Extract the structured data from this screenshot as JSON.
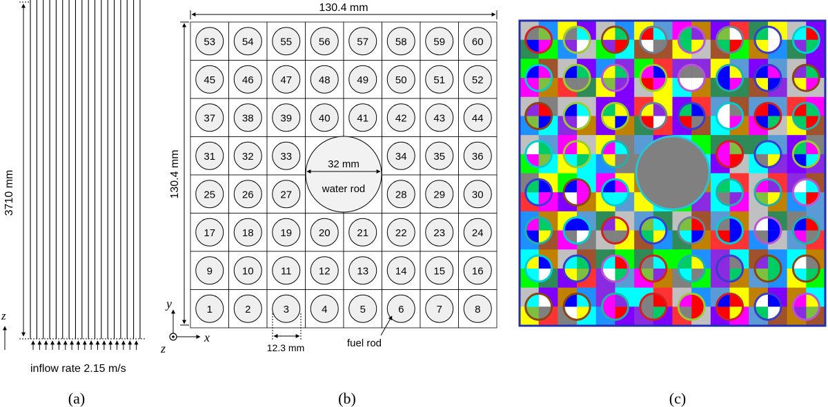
{
  "panel_a": {
    "height_label": "3710 mm",
    "z_axis": "z",
    "inflow_label": "inflow rate 2.15 m/s",
    "caption": "(a)"
  },
  "panel_b": {
    "width_label": "130.4 mm",
    "height_label": "130.4 mm",
    "water_rod_diameter": "32 mm",
    "water_rod_label": "water rod",
    "pitch_label": "12.3 mm",
    "fuel_rod_label": "fuel rod",
    "axis_x": "x",
    "axis_y": "y",
    "axis_z": "z",
    "caption": "(b)",
    "rod_numbers": [
      [
        "53",
        "54",
        "55",
        "56",
        "57",
        "58",
        "59",
        "60"
      ],
      [
        "45",
        "46",
        "47",
        "48",
        "49",
        "50",
        "51",
        "52"
      ],
      [
        "37",
        "38",
        "39",
        "40",
        "41",
        "42",
        "43",
        "44"
      ],
      [
        "31",
        "32",
        "33",
        "",
        "",
        "34",
        "35",
        "36"
      ],
      [
        "25",
        "26",
        "27",
        "",
        "",
        "28",
        "29",
        "30"
      ],
      [
        "17",
        "18",
        "19",
        "20",
        "21",
        "22",
        "23",
        "24"
      ],
      [
        "9",
        "10",
        "11",
        "12",
        "13",
        "14",
        "15",
        "16"
      ],
      [
        "1",
        "2",
        "3",
        "4",
        "5",
        "6",
        "7",
        "8"
      ]
    ]
  },
  "panel_c": {
    "caption": "(c)",
    "colors": {
      "border": "#1f2fb0",
      "water_rod": "#808080",
      "water_rod_ring": "#27c4d8"
    }
  }
}
